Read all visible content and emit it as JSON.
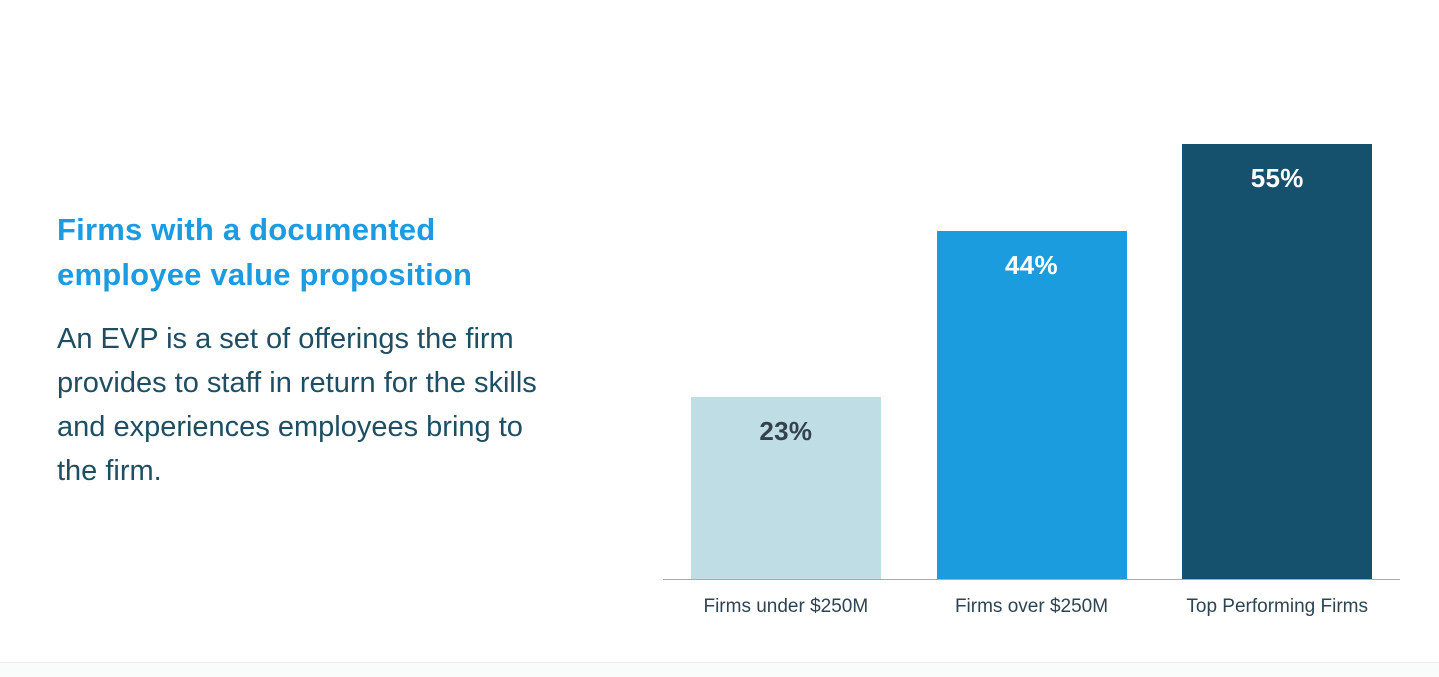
{
  "left_panel": {
    "title": "Firms with a documented employee value proposition",
    "description": "An EVP is a set of offerings the firm provides to staff in return for the skills and experiences employees bring to the firm.",
    "title_color": "#1b9ce2",
    "text_color": "#1f4e63"
  },
  "chart_data": {
    "type": "bar",
    "title": "Firms with a documented employee value proposition",
    "categories": [
      "Firms under $250M",
      "Firms over $250M",
      "Top Performing Firms"
    ],
    "values": [
      23,
      44,
      55
    ],
    "data_labels": [
      "23%",
      "44%",
      "55%"
    ],
    "bar_colors": [
      "#bfdde4",
      "#1b9cdf",
      "#15516d"
    ],
    "value_label_colors": [
      "#33424c",
      "#ffffff",
      "#ffffff"
    ],
    "tick_label_color": "#2e4453",
    "axis_line_color": "#ababab",
    "xlabel": "",
    "ylabel": "",
    "ylim": [
      0,
      58
    ],
    "grid": false,
    "legend": false
  }
}
